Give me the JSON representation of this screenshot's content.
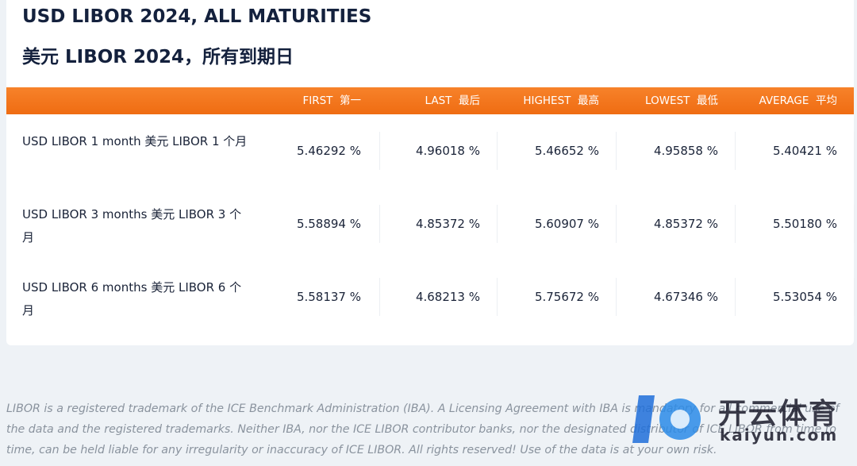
{
  "header": {
    "title": "USD LIBOR 2024, ALL MATURITIES",
    "subtitle": "美元 LIBOR 2024，所有到期日"
  },
  "table": {
    "columns": [
      "FIRST  第一",
      "LAST  最后",
      "HIGHEST  最高",
      "LOWEST  最低",
      "AVERAGE  平均"
    ],
    "rows": [
      [
        "USD LIBOR 1 month  美元 LIBOR 1 个月",
        "5.46292 %",
        "4.96018 %",
        "5.46652 %",
        "4.95858 %",
        "5.40421 %"
      ],
      [
        "USD LIBOR 3 months  美元 LIBOR 3 个月",
        "5.58894 %",
        "4.85372 %",
        "5.60907 %",
        "4.85372 %",
        "5.50180 %"
      ],
      [
        "USD LIBOR 6 months  美元 LIBOR 6 个月",
        "5.58137 %",
        "4.68213 %",
        "5.75672 %",
        "4.67346 %",
        "5.53054 %"
      ]
    ]
  },
  "footer": {
    "text": "LIBOR is a registered trademark of the ICE Benchmark Administration (IBA). A Licensing Agreement with IBA is mandatory for all commercial use of the data and the registered trademarks. Neither IBA, nor the ICE LIBOR contributor banks, nor the designated distributor of ICE LIBOR from time to time, can be held liable for any irregularity or inaccuracy of ICE LIBOR. All rights reserved! Use of the data is at your own risk."
  },
  "watermark": {
    "name": "开云体育",
    "url": "kaiyun.com"
  }
}
